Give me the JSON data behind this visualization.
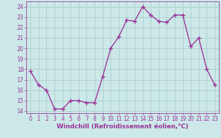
{
  "x": [
    0,
    1,
    2,
    3,
    4,
    5,
    6,
    7,
    8,
    9,
    10,
    11,
    12,
    13,
    14,
    15,
    16,
    17,
    18,
    19,
    20,
    21,
    22,
    23
  ],
  "y": [
    17.8,
    16.5,
    16.0,
    14.2,
    14.2,
    15.0,
    15.0,
    14.8,
    14.8,
    17.3,
    20.0,
    21.1,
    22.7,
    22.6,
    24.0,
    23.2,
    22.6,
    22.5,
    23.2,
    23.2,
    20.2,
    21.0,
    18.0,
    16.5
  ],
  "line_color": "#993399",
  "marker": "+",
  "marker_size": 4,
  "marker_color": "#993399",
  "background_color": "#cce8e8",
  "grid_color": "#aacccc",
  "xlabel": "Windchill (Refroidissement éolien,°C)",
  "xlabel_color": "#993399",
  "tick_color": "#993399",
  "label_color": "#993399",
  "ylim": [
    13.8,
    24.5
  ],
  "xlim": [
    -0.5,
    23.5
  ],
  "yticks": [
    14,
    15,
    16,
    17,
    18,
    19,
    20,
    21,
    22,
    23,
    24
  ],
  "xticks": [
    0,
    1,
    2,
    3,
    4,
    5,
    6,
    7,
    8,
    9,
    10,
    11,
    12,
    13,
    14,
    15,
    16,
    17,
    18,
    19,
    20,
    21,
    22,
    23
  ],
  "tick_fontsize": 5.5,
  "xlabel_fontsize": 6.5,
  "line_width": 1.0
}
